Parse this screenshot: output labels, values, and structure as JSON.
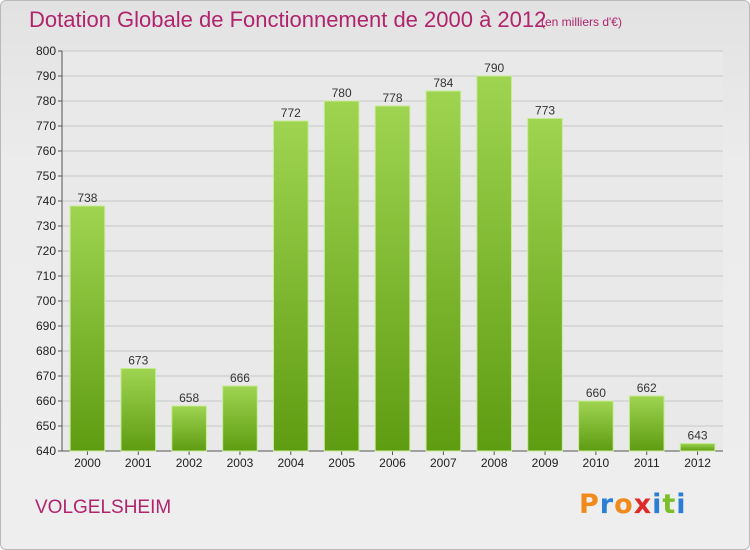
{
  "header": {
    "title": "Dotation Globale de Fonctionnement de 2000 à 2012",
    "unit": "(en milliers d'€)"
  },
  "footer": {
    "commune": "VOLGELSHEIM",
    "logo_text": "Proxiti",
    "logo_colors": [
      "#f08a1c",
      "#2a7fd4",
      "#f08a1c",
      "#e02a2a",
      "#2a7fd4",
      "#7bbf2a",
      "#2a7fd4"
    ]
  },
  "colors": {
    "bar_top": "#9fd451",
    "bar_bottom": "#5e9c12",
    "grid": "#c8c8c8",
    "text_accent": "#b0246d"
  },
  "chart_data": {
    "type": "bar",
    "title": "Dotation Globale de Fonctionnement de 2000 à 2012",
    "subtitle": "(en milliers d'€)",
    "xlabel": "",
    "ylabel": "",
    "categories": [
      "2000",
      "2001",
      "2002",
      "2003",
      "2004",
      "2005",
      "2006",
      "2007",
      "2008",
      "2009",
      "2010",
      "2011",
      "2012"
    ],
    "values": [
      738,
      673,
      658,
      666,
      772,
      780,
      778,
      784,
      790,
      773,
      660,
      662,
      643
    ],
    "ylim": [
      640,
      800
    ],
    "ytick_step": 10,
    "grid": true,
    "legend": "none"
  }
}
